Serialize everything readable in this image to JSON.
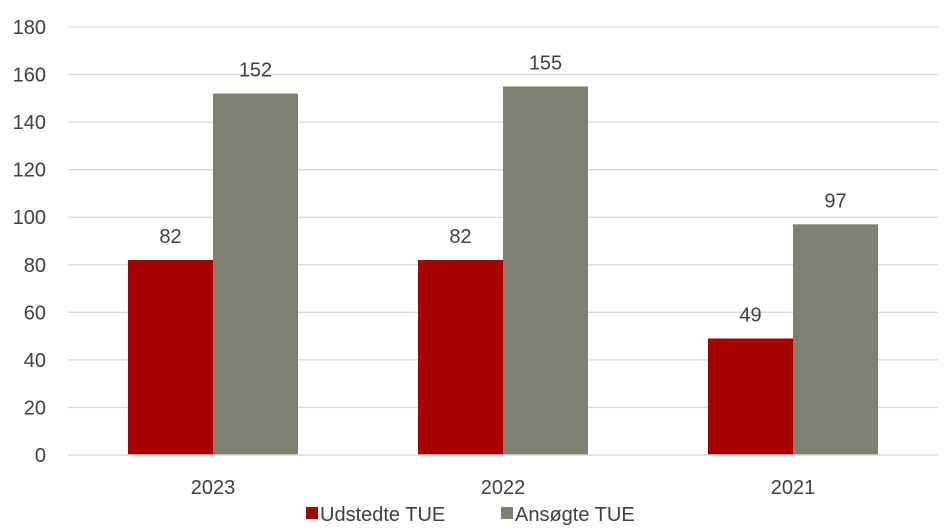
{
  "chart_data": {
    "type": "bar",
    "title": "",
    "xlabel": "",
    "ylabel": "",
    "categories": [
      "2023",
      "2022",
      "2021"
    ],
    "series": [
      {
        "name": "Udstedte TUE",
        "color": "#A50000",
        "values": [
          82,
          82,
          49
        ]
      },
      {
        "name": "Ansøgte TUE",
        "color": "#7F7F72",
        "values": [
          152,
          155,
          97
        ]
      }
    ],
    "ylim": [
      0,
      180
    ],
    "yticks": [
      0,
      20,
      40,
      60,
      80,
      100,
      120,
      140,
      160,
      180
    ],
    "grid": true,
    "gridColor": "#D9D9D9",
    "legend": "bottom",
    "data_labels": true
  }
}
